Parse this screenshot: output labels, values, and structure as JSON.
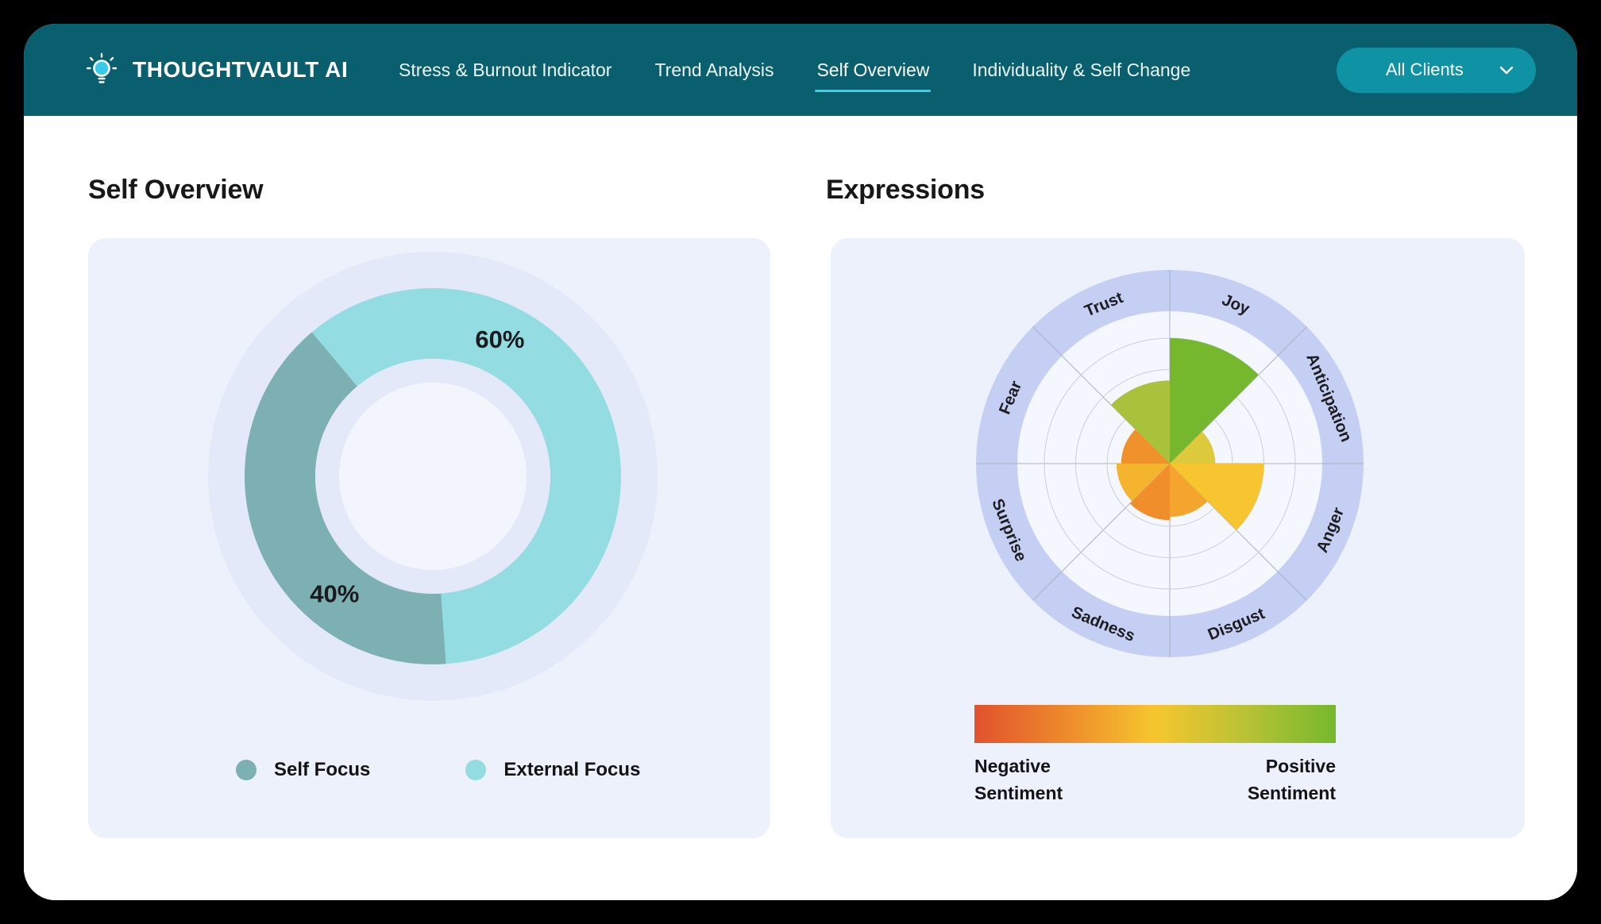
{
  "header": {
    "brand": "THOUGHTVAULT AI",
    "nav_items": [
      {
        "label": "Stress & Burnout Indicator",
        "active": false
      },
      {
        "label": "Trend Analysis",
        "active": false
      },
      {
        "label": "Self Overview",
        "active": true
      },
      {
        "label": "Individuality & Self Change",
        "active": false
      }
    ],
    "client_dropdown": {
      "label": "All Clients"
    }
  },
  "sections": {
    "self_overview_title": "Self Overview",
    "expressions_title": "Expressions"
  },
  "chart_data": [
    {
      "id": "self-overview-donut",
      "type": "pie",
      "title": "Self Overview",
      "donut": true,
      "start_angle_deg": 320,
      "unit": "%",
      "segments": [
        {
          "label": "External Focus",
          "value": 60,
          "color": "#92dce2",
          "label_angle_deg": 26
        },
        {
          "label": "Self Focus",
          "value": 40,
          "color": "#7db0b3",
          "label_angle_deg": 220
        }
      ],
      "legend": [
        {
          "label": "Self Focus",
          "color": "#7db0b3"
        },
        {
          "label": "External Focus",
          "color": "#92dce2"
        }
      ],
      "legend_position": "bottom",
      "styles": {
        "halo_color": "#e3e9f9",
        "hole_color": "#f3f5fd",
        "label_color": "#1b1b1e"
      }
    },
    {
      "id": "expressions-polar",
      "type": "polar-wedge",
      "title": "Expressions",
      "scale_max": 4,
      "grid_rings": 4,
      "sector_span_deg": 45,
      "grid": true,
      "sectors": [
        {
          "label": "Joy",
          "value": 4.0,
          "color": "#76b82d",
          "mid_angle_deg": 22.5
        },
        {
          "label": "Anticipation",
          "value": 1.45,
          "color": "#ddc93c",
          "mid_angle_deg": 67.5
        },
        {
          "label": "Anger",
          "value": 3.0,
          "color": "#f7c52f",
          "mid_angle_deg": 112.5
        },
        {
          "label": "Disgust",
          "value": 1.7,
          "color": "#f3a52e",
          "mid_angle_deg": 157.5
        },
        {
          "label": "Sadness",
          "value": 1.8,
          "color": "#ef8e2b",
          "mid_angle_deg": 202.5
        },
        {
          "label": "Surprise",
          "value": 1.7,
          "color": "#f5b42e",
          "mid_angle_deg": 247.5
        },
        {
          "label": "Fear",
          "value": 1.55,
          "color": "#f0922c",
          "mid_angle_deg": 292.5
        },
        {
          "label": "Trust",
          "value": 2.65,
          "color": "#a8c23b",
          "mid_angle_deg": 337.5
        }
      ],
      "styles": {
        "band_color": "#c5cff4",
        "inner_disk_color": "#f4f7fe",
        "grid_circle_color": "#c9cedb",
        "grid_radial_color": "#a9b2c2",
        "label_color": "#1d1d20"
      },
      "colorbar": {
        "gradient": [
          "#e2512e",
          "#ee8a2b",
          "#f6c62e",
          "#b9c235",
          "#76b82d"
        ],
        "left_label_lines": [
          "Negative",
          "Sentiment"
        ],
        "right_label_lines": [
          "Positive",
          "Sentiment"
        ]
      }
    }
  ]
}
